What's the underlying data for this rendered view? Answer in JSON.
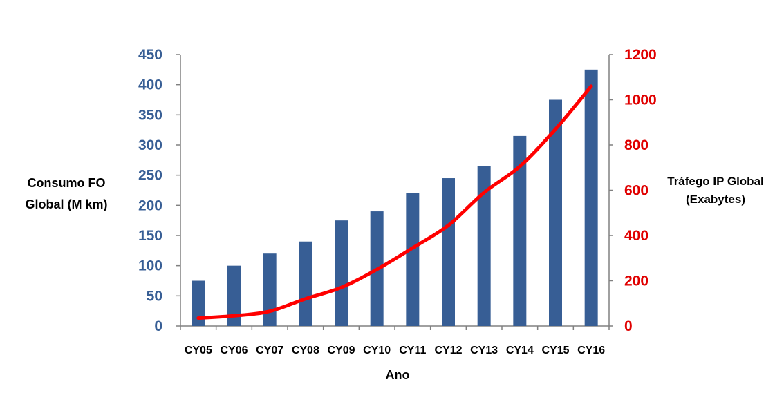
{
  "chart_data": {
    "type": "bar+line",
    "title": "",
    "categories": [
      "CY05",
      "CY06",
      "CY07",
      "CY08",
      "CY09",
      "CY10",
      "CY11",
      "CY12",
      "CY13",
      "CY14",
      "CY15",
      "CY16"
    ],
    "xlabel": "Ano",
    "y_left": {
      "label_lines": [
        "Consumo FO",
        "Global (M km)"
      ],
      "range": [
        0,
        450
      ],
      "ticks": [
        0,
        50,
        100,
        150,
        200,
        250,
        300,
        350,
        400,
        450
      ]
    },
    "y_right": {
      "label_lines": [
        "Tráfego IP Global",
        "(Exabytes)"
      ],
      "range": [
        0,
        1200
      ],
      "ticks": [
        0,
        200,
        400,
        600,
        800,
        1000,
        1200
      ]
    },
    "series": [
      {
        "type": "bar",
        "axis": "left",
        "color": "#375E95",
        "values": [
          75,
          100,
          120,
          140,
          175,
          190,
          220,
          245,
          265,
          315,
          375,
          425
        ]
      },
      {
        "type": "line",
        "axis": "right",
        "color": "#FF0000",
        "values": [
          35,
          45,
          65,
          120,
          170,
          250,
          345,
          445,
          590,
          705,
          870,
          1060
        ]
      }
    ],
    "colors": {
      "left_tick_color": "#375E95",
      "right_tick_color": "#E00000",
      "axis_color": "#808080"
    },
    "grid": false,
    "legend": "none"
  }
}
